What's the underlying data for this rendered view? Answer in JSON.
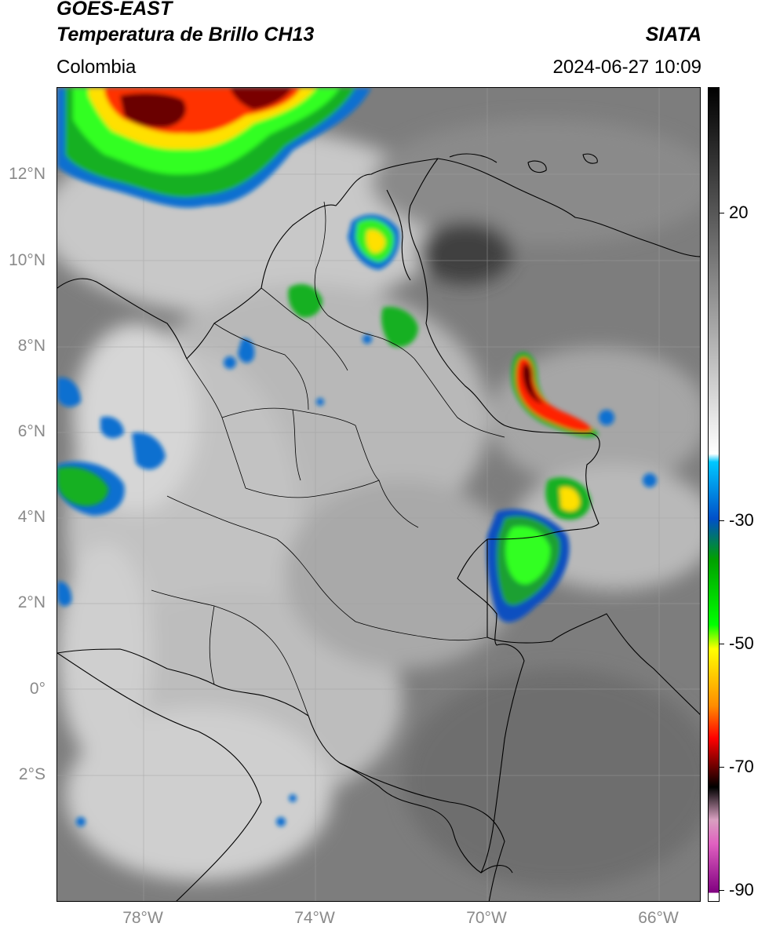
{
  "header": {
    "title_line1": "GOES-EAST",
    "title_line2": "Temperatura de Brillo CH13",
    "source": "SIATA",
    "region": "Colombia",
    "timestamp": "2024-06-27 10:09"
  },
  "map": {
    "latitude_labels": [
      "12°N",
      "10°N",
      "8°N",
      "6°N",
      "4°N",
      "2°N",
      "0°",
      "2°S"
    ],
    "longitude_labels": [
      "78°W",
      "74°W",
      "70°W",
      "66°W"
    ]
  },
  "colorbar": {
    "tick_labels": [
      "20",
      "-30",
      "-50",
      "-70",
      "-90"
    ],
    "palette": [
      "#000000",
      "#ffffff",
      "#00c8ff",
      "#0050c8",
      "#00a000",
      "#00ff00",
      "#ffff00",
      "#ff8c00",
      "#ff0000",
      "#800000",
      "#000000",
      "#d8a0c0",
      "#e060c0",
      "#800080"
    ]
  }
}
